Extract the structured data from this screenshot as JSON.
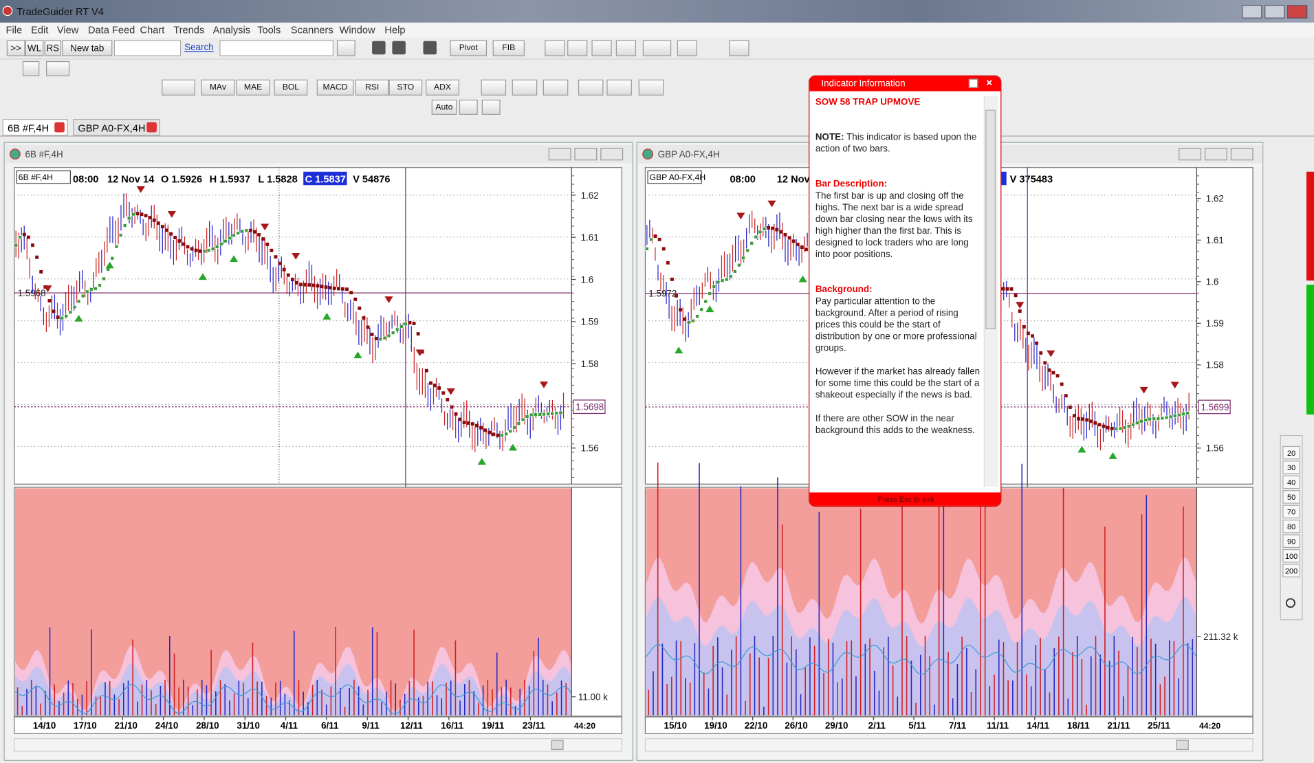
{
  "window": {
    "title": "TradeGuider RT V4"
  },
  "menu": [
    "File",
    "Edit",
    "View",
    "Data Feed",
    "Chart",
    "Trends",
    "Analysis",
    "Tools",
    "Scanners",
    "Window",
    "Help"
  ],
  "toolbar1": [
    ">>",
    "WL",
    "RS",
    "New tab"
  ],
  "search": "Search",
  "toolbar_menus": [
    "Pivot",
    "FIB"
  ],
  "indicators": [
    "MAv",
    "MAE",
    "BOL",
    "MACD",
    "RSI",
    "STO",
    "ADX"
  ],
  "auto": "Auto",
  "tabs": [
    "6B #F,4H",
    "GBP A0-FX,4H"
  ],
  "panels": [
    {
      "title": "6B #F,4H",
      "symbol": "6B #F,4H",
      "info": [
        "08:00",
        "12 Nov 14",
        "O 1.5926",
        "H 1.5937",
        "L 1.5828",
        "C 1.5837",
        "V 54876"
      ],
      "price_ticks": [
        1.62,
        1.61,
        1.6,
        1.59,
        1.58,
        1.56
      ],
      "level": 1.5968,
      "marker": 1.5698,
      "volume_label": "11.00 k",
      "dates": [
        "14/10",
        "17/10",
        "21/10",
        "24/10",
        "28/10",
        "31/10",
        "4/11",
        "6/11",
        "9/11",
        "12/11",
        "16/11",
        "19/11",
        "23/11"
      ],
      "time": "44:20"
    },
    {
      "title": "GBP A0-FX,4H",
      "symbol": "GBP A0-FX,4H",
      "info": [
        "08:00",
        "12 Nov 14",
        "V 375483"
      ],
      "price_ticks": [
        1.62,
        1.61,
        1.6,
        1.59,
        1.58,
        1.56
      ],
      "level": 1.5972,
      "marker": 1.5699,
      "volume_label": "211.32 k",
      "dates": [
        "15/10",
        "19/10",
        "22/10",
        "26/10",
        "29/10",
        "2/11",
        "5/11",
        "7/11",
        "11/11",
        "14/11",
        "18/11",
        "21/11",
        "25/11"
      ],
      "time": "44:20"
    }
  ],
  "popup": {
    "title": "Indicator Information",
    "heading": "SOW 58 TRAP UPMOVE",
    "note_label": "NOTE:",
    "note": "This indicator is based upon the action of two bars.",
    "bar_label": "Bar Description:",
    "bar_text": "The first bar is up and closing off the highs. The next bar is a wide spread down bar closing near the lows with its high higher than the first bar. This is designed to lock traders who are long into poor positions.",
    "background_label": "Background:",
    "background": [
      "Pay particular attention to the background. After a period of rising prices this could be the start of distribution by one or more professional groups.",
      "However if the market has already fallen for some time this could be the start of a shakeout especially if the news is bad.",
      "If there are other SOW in the near background this adds to the weakness."
    ],
    "footer": "Press Esc to exit"
  },
  "zoom": [
    "20",
    "30",
    "40",
    "50",
    "70",
    "80",
    "90",
    "100",
    "200"
  ]
}
